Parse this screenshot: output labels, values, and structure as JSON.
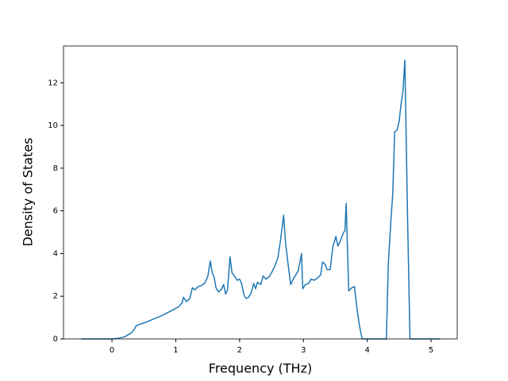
{
  "chart_data": {
    "type": "line",
    "xlabel": "Frequency (THz)",
    "ylabel": "Density of States",
    "xlim": [
      -0.76,
      5.41
    ],
    "ylim": [
      0,
      13.72
    ],
    "xticks": [
      0,
      1,
      2,
      3,
      4,
      5
    ],
    "yticks": [
      0,
      2,
      4,
      6,
      8,
      10,
      12
    ],
    "grid": false,
    "series": [
      {
        "color": "#1f77b4",
        "x": [
          -0.48,
          0,
          0.1,
          0.2,
          0.3,
          0.35,
          0.38,
          0.45,
          0.55,
          0.65,
          0.75,
          0.85,
          0.95,
          1.05,
          1.1,
          1.12,
          1.17,
          1.22,
          1.26,
          1.3,
          1.35,
          1.4,
          1.45,
          1.5,
          1.54,
          1.57,
          1.6,
          1.63,
          1.67,
          1.72,
          1.75,
          1.78,
          1.81,
          1.85,
          1.88,
          1.92,
          1.96,
          2.0,
          2.03,
          2.07,
          2.1,
          2.14,
          2.18,
          2.22,
          2.25,
          2.28,
          2.33,
          2.37,
          2.41,
          2.46,
          2.5,
          2.55,
          2.6,
          2.64,
          2.69,
          2.72,
          2.76,
          2.8,
          2.84,
          2.88,
          2.92,
          2.97,
          2.99,
          3.03,
          3.08,
          3.12,
          3.17,
          3.22,
          3.27,
          3.3,
          3.34,
          3.37,
          3.42,
          3.46,
          3.51,
          3.54,
          3.58,
          3.63,
          3.65,
          3.67,
          3.71,
          3.76,
          3.8,
          3.84,
          3.88,
          3.92,
          4.3,
          4.33,
          4.37,
          4.4,
          4.43,
          4.47,
          4.5,
          4.53,
          4.56,
          4.59,
          4.63,
          4.67,
          5.14
        ],
        "values": [
          0,
          0,
          0.03,
          0.1,
          0.28,
          0.45,
          0.62,
          0.7,
          0.8,
          0.93,
          1.05,
          1.2,
          1.35,
          1.52,
          1.7,
          1.95,
          1.75,
          1.9,
          2.4,
          2.3,
          2.45,
          2.5,
          2.6,
          2.9,
          3.65,
          3.1,
          2.9,
          2.4,
          2.2,
          2.35,
          2.55,
          2.1,
          2.3,
          3.85,
          3.1,
          2.95,
          2.75,
          2.8,
          2.6,
          2.05,
          1.9,
          1.95,
          2.15,
          2.6,
          2.35,
          2.65,
          2.55,
          2.95,
          2.8,
          2.9,
          3.1,
          3.4,
          3.8,
          4.6,
          5.8,
          4.5,
          3.5,
          2.55,
          2.8,
          3.0,
          3.2,
          4.0,
          2.35,
          2.55,
          2.6,
          2.8,
          2.75,
          2.85,
          3.0,
          3.6,
          3.5,
          3.25,
          3.25,
          4.3,
          4.8,
          4.35,
          4.6,
          5.0,
          5.05,
          6.35,
          2.25,
          2.4,
          2.45,
          1.4,
          0.6,
          0,
          0,
          3.5,
          5.5,
          6.8,
          9.7,
          9.8,
          10.2,
          11.0,
          11.6,
          13.05,
          6.0,
          0,
          0
        ]
      }
    ]
  }
}
